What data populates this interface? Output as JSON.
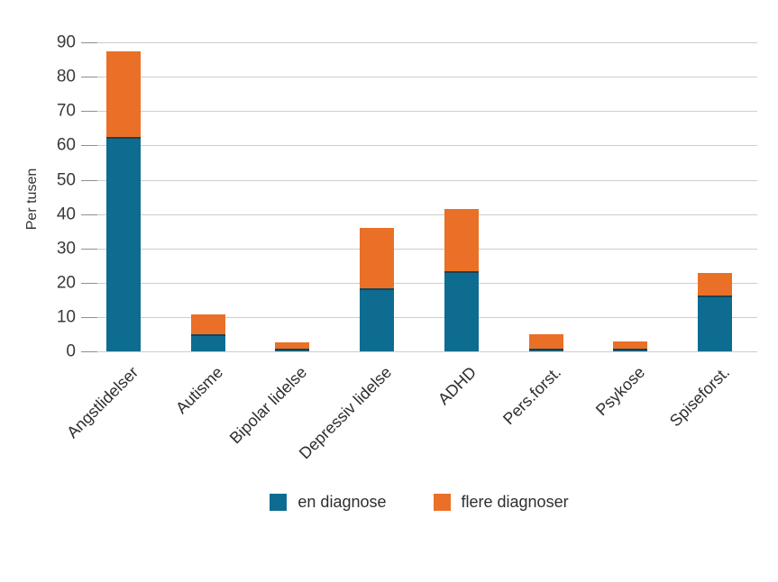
{
  "chart_data": {
    "type": "bar",
    "stacked": true,
    "title": "",
    "categories": [
      "Angstlidelser",
      "Autisme",
      "Bipolar lidelse",
      "Depressiv lidelse",
      "ADHD",
      "Pers.forst.",
      "Psykose",
      "Spiseforst."
    ],
    "series": [
      {
        "name": "en diagnose",
        "color": "#0F6C91",
        "values": [
          62.5,
          5.1,
          0.8,
          18.4,
          23.4,
          0.8,
          0.9,
          16.4
        ]
      },
      {
        "name": "flere diagnoser",
        "color": "#E97026",
        "values": [
          25.0,
          5.6,
          1.8,
          17.5,
          18.0,
          4.1,
          2.1,
          6.5
        ]
      }
    ],
    "totals": [
      87.5,
      10.7,
      2.6,
      35.9,
      41.4,
      4.9,
      3.0,
      22.9
    ],
    "xlabel": "",
    "ylabel": "Per tusen",
    "ylim": [
      0,
      90
    ],
    "yticks": [
      0,
      10,
      20,
      30,
      40,
      50,
      60,
      70,
      80,
      90
    ],
    "grid": true,
    "gridline_color": "#cdcdcd",
    "tick_color": "#8f8f8f",
    "text_color": "#2e2e2e",
    "x_label_rotation_deg": -45,
    "legend_position": "bottom",
    "background": "#ffffff"
  }
}
